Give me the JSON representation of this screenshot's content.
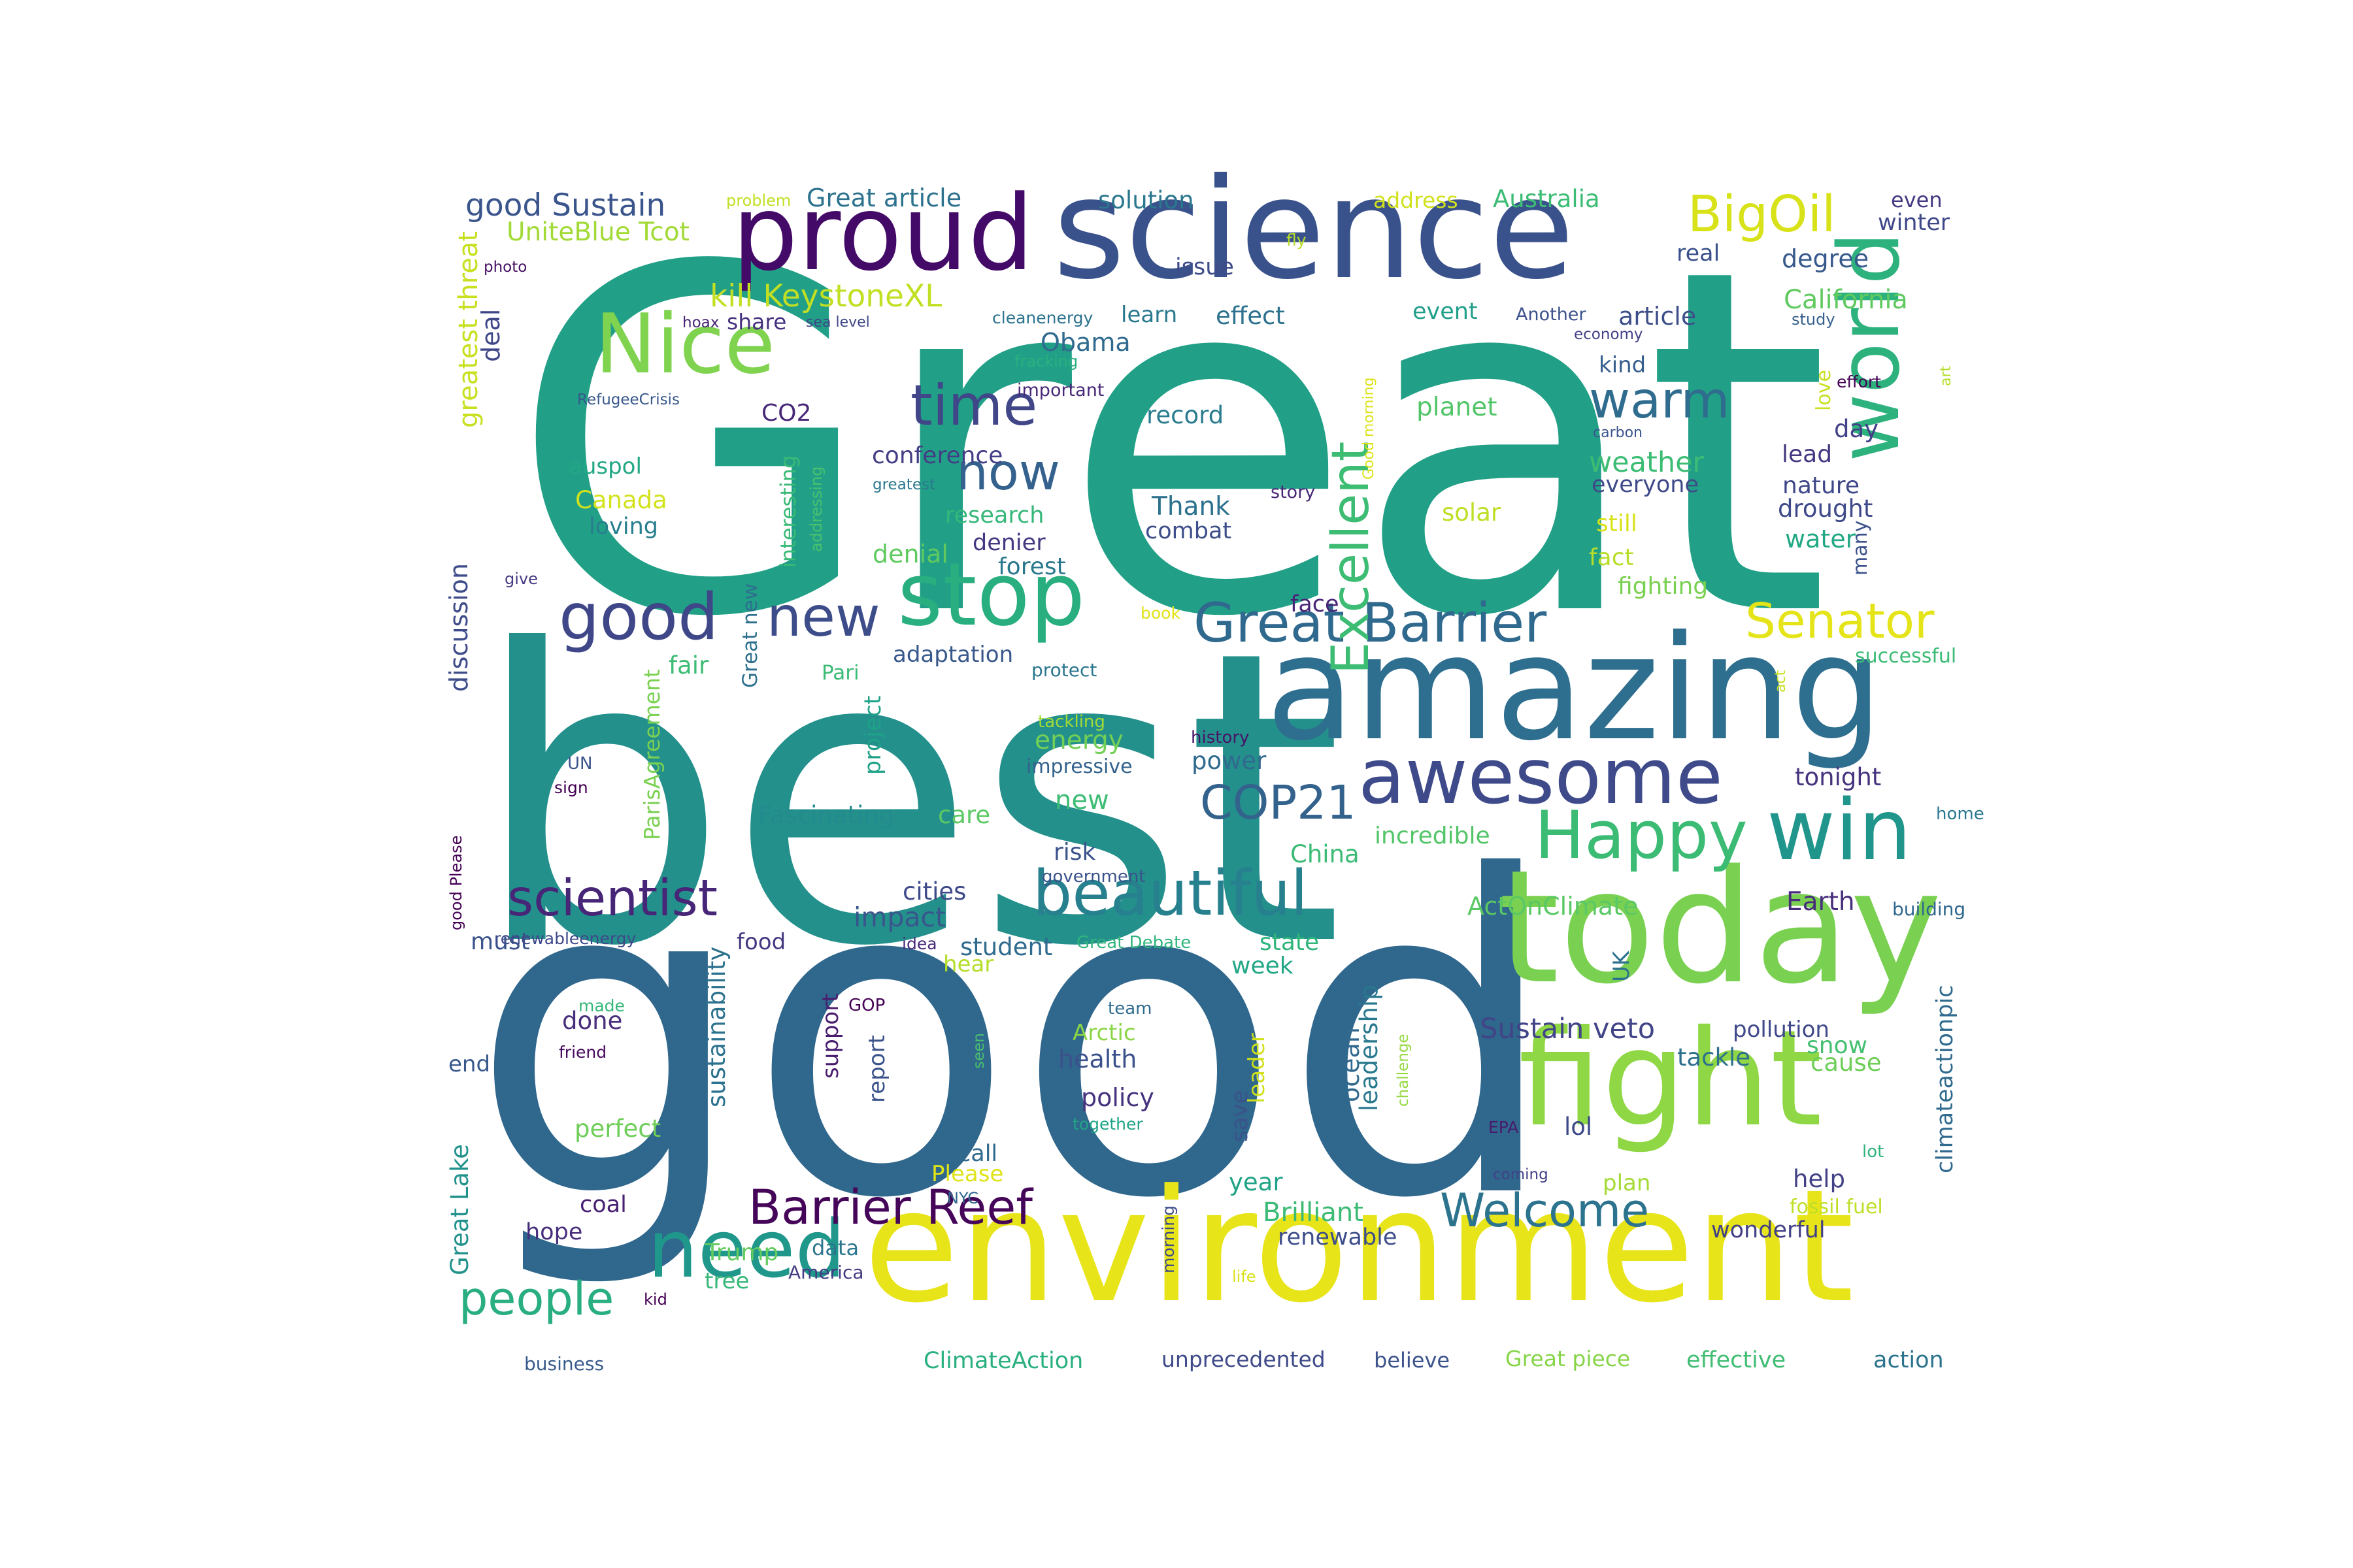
{
  "words": [
    {
      "text": "Great",
      "color": "#21a087"
    },
    {
      "text": "best",
      "color": "#23908c"
    },
    {
      "text": "good",
      "color": "#30678d"
    },
    {
      "text": "science",
      "color": "#3a528b"
    },
    {
      "text": "amazing",
      "color": "#2e6e8e"
    },
    {
      "text": "environment",
      "color": "#e8e41a"
    },
    {
      "text": "today",
      "color": "#7ad151"
    },
    {
      "text": "fight",
      "color": "#8fd744"
    },
    {
      "text": "proud",
      "color": "#440a68"
    },
    {
      "text": "awesome",
      "color": "#3e4a89"
    },
    {
      "text": "stop",
      "color": "#29af7f"
    },
    {
      "text": "Nice",
      "color": "#7fd34e"
    },
    {
      "text": "world",
      "color": "#2db27d"
    },
    {
      "text": "win",
      "color": "#1f958b"
    },
    {
      "text": "need",
      "color": "#1f978b"
    },
    {
      "text": "beautiful",
      "color": "#27808e"
    },
    {
      "text": "Happy",
      "color": "#3cbb75"
    },
    {
      "text": "time",
      "color": "#404688"
    },
    {
      "text": "good",
      "color": "#3f4788"
    },
    {
      "text": "new",
      "color": "#3d4d8a"
    },
    {
      "text": "now",
      "color": "#34618d"
    },
    {
      "text": "warm",
      "color": "#2f6c8e"
    },
    {
      "text": "Great Barrier",
      "color": "#30698e"
    },
    {
      "text": "Senator",
      "color": "#e5e419"
    },
    {
      "text": "BigOil",
      "color": "#d8e219"
    },
    {
      "text": "Excellent",
      "color": "#3dbc74"
    },
    {
      "text": "COP21",
      "color": "#33628d"
    },
    {
      "text": "scientist",
      "color": "#482677"
    },
    {
      "text": "Barrier Reef",
      "color": "#450559"
    },
    {
      "text": "Welcome",
      "color": "#2c738e"
    },
    {
      "text": "people",
      "color": "#28ae80"
    },
    {
      "text": "good Sustain",
      "color": "#3a548c"
    },
    {
      "text": "Great article",
      "color": "#2c728e"
    },
    {
      "text": "solution",
      "color": "#2a778e"
    },
    {
      "text": "address",
      "color": "#d0e11c"
    },
    {
      "text": "Australia",
      "color": "#3cbc74"
    },
    {
      "text": "even",
      "color": "#453882"
    },
    {
      "text": "winter",
      "color": "#3f4889"
    },
    {
      "text": "UniteBlue Tcot",
      "color": "#a2da37"
    },
    {
      "text": "kill KeystoneXL",
      "color": "#c2df23"
    },
    {
      "text": "issue",
      "color": "#3e4c8a"
    },
    {
      "text": "real",
      "color": "#3b518b"
    },
    {
      "text": "degree",
      "color": "#37598c"
    },
    {
      "text": "California",
      "color": "#60ca60"
    },
    {
      "text": "effect",
      "color": "#2c718e"
    },
    {
      "text": "learn",
      "color": "#29798e"
    },
    {
      "text": "event",
      "color": "#1f9e89"
    },
    {
      "text": "article",
      "color": "#3d4e8a"
    },
    {
      "text": "Obama",
      "color": "#306a8e"
    },
    {
      "text": "deal",
      "color": "#3f4788"
    },
    {
      "text": "share",
      "color": "#46327e"
    },
    {
      "text": "greatest threat",
      "color": "#c8e020"
    },
    {
      "text": "photo",
      "color": "#471164"
    },
    {
      "text": "kind",
      "color": "#355e8d"
    },
    {
      "text": "record",
      "color": "#287c8e"
    },
    {
      "text": "planet",
      "color": "#52c569"
    },
    {
      "text": "CO2",
      "color": "#482878"
    },
    {
      "text": "conference",
      "color": "#433e85"
    },
    {
      "text": "day",
      "color": "#424086"
    },
    {
      "text": "lead",
      "color": "#453781"
    },
    {
      "text": "weather",
      "color": "#3dbc74"
    },
    {
      "text": "everyone",
      "color": "#3e4a89"
    },
    {
      "text": "nature",
      "color": "#3f4788"
    },
    {
      "text": "drought",
      "color": "#3e4989"
    },
    {
      "text": "auspol",
      "color": "#22a785"
    },
    {
      "text": "Canada",
      "color": "#d2e21b"
    },
    {
      "text": "loving",
      "color": "#277f8e"
    },
    {
      "text": "research",
      "color": "#35b779"
    },
    {
      "text": "Thank",
      "color": "#2c728e"
    },
    {
      "text": "combat",
      "color": "#3d4e8a"
    },
    {
      "text": "solar",
      "color": "#bddf26"
    },
    {
      "text": "still",
      "color": "#d8e219"
    },
    {
      "text": "water",
      "color": "#22a884"
    },
    {
      "text": "fact",
      "color": "#b8de29"
    },
    {
      "text": "denier",
      "color": "#453781"
    },
    {
      "text": "denial",
      "color": "#60ca60"
    },
    {
      "text": "forest",
      "color": "#2a788e"
    },
    {
      "text": "fighting",
      "color": "#7ad151"
    },
    {
      "text": "face",
      "color": "#482576"
    },
    {
      "text": "adaptation",
      "color": "#38588c"
    },
    {
      "text": "protect",
      "color": "#2a778e"
    },
    {
      "text": "successful",
      "color": "#3bbb75"
    },
    {
      "text": "fair",
      "color": "#3cbc74"
    },
    {
      "text": "Pari",
      "color": "#3bbb75"
    },
    {
      "text": "energy",
      "color": "#73d056"
    },
    {
      "text": "new",
      "color": "#3dbc74"
    },
    {
      "text": "power",
      "color": "#306a8e"
    },
    {
      "text": "tonight",
      "color": "#46337e"
    },
    {
      "text": "Fascinating",
      "color": "#238a8d"
    },
    {
      "text": "care",
      "color": "#5cc863"
    },
    {
      "text": "incredible",
      "color": "#54c568"
    },
    {
      "text": "impressive",
      "color": "#33628d"
    },
    {
      "text": "China",
      "color": "#3cbb75"
    },
    {
      "text": "risk",
      "color": "#3b528b"
    },
    {
      "text": "cities",
      "color": "#3e4a89"
    },
    {
      "text": "impact",
      "color": "#39568c"
    },
    {
      "text": "student",
      "color": "#2f6b8e"
    },
    {
      "text": "ActOnClimate",
      "color": "#5ac864"
    },
    {
      "text": "Earth",
      "color": "#472d7b"
    },
    {
      "text": "state",
      "color": "#2fb47c"
    },
    {
      "text": "week",
      "color": "#22a785"
    },
    {
      "text": "food",
      "color": "#453882"
    },
    {
      "text": "must",
      "color": "#3a538b"
    },
    {
      "text": "hear",
      "color": "#b5de2b"
    },
    {
      "text": "Sustain veto",
      "color": "#414487"
    },
    {
      "text": "pollution",
      "color": "#3f4889"
    },
    {
      "text": "snow",
      "color": "#44bf70"
    },
    {
      "text": "tackle",
      "color": "#2d708e"
    },
    {
      "text": "cause",
      "color": "#6ece58"
    },
    {
      "text": "done",
      "color": "#472d7b"
    },
    {
      "text": "support",
      "color": "#481c6e"
    },
    {
      "text": "report",
      "color": "#3a538b"
    },
    {
      "text": "Arctic",
      "color": "#8bd646"
    },
    {
      "text": "health",
      "color": "#3b518b"
    },
    {
      "text": "policy",
      "color": "#46337e"
    },
    {
      "text": "leader",
      "color": "#d0e11c"
    },
    {
      "text": "ocean",
      "color": "#31688e"
    },
    {
      "text": "leadership",
      "color": "#2a788e"
    },
    {
      "text": "save",
      "color": "#3b528b"
    },
    {
      "text": "lol",
      "color": "#3e4989"
    },
    {
      "text": "end",
      "color": "#38598c"
    },
    {
      "text": "perfect",
      "color": "#6ece58"
    },
    {
      "text": "call",
      "color": "#306a8e"
    },
    {
      "text": "Please",
      "color": "#dfe318"
    },
    {
      "text": "year",
      "color": "#20a386"
    },
    {
      "text": "Brilliant",
      "color": "#3bbb75"
    },
    {
      "text": "renewable",
      "color": "#3d4e8a"
    },
    {
      "text": "help",
      "color": "#424186"
    },
    {
      "text": "plan",
      "color": "#a5db36"
    },
    {
      "text": "coal",
      "color": "#482173"
    },
    {
      "text": "hope",
      "color": "#472e7c"
    },
    {
      "text": "Trump",
      "color": "#63cb5f"
    },
    {
      "text": "data",
      "color": "#2b758e"
    },
    {
      "text": "tree",
      "color": "#37b878"
    },
    {
      "text": "America",
      "color": "#433d84"
    },
    {
      "text": "wonderful",
      "color": "#424086"
    },
    {
      "text": "ClimateAction",
      "color": "#2ab07f"
    },
    {
      "text": "unprecedented",
      "color": "#3e4a89"
    },
    {
      "text": "believe",
      "color": "#3b528b"
    },
    {
      "text": "Great piece",
      "color": "#86d549"
    },
    {
      "text": "effective",
      "color": "#40bd72"
    },
    {
      "text": "action",
      "color": "#2c738e"
    },
    {
      "text": "business",
      "color": "#375a8c"
    },
    {
      "text": "kid",
      "color": "#440154"
    },
    {
      "text": "problem",
      "color": "#c2df23"
    },
    {
      "text": "fly",
      "color": "#b8de29"
    },
    {
      "text": "hoax",
      "color": "#482475"
    },
    {
      "text": "sea level",
      "color": "#3f4788"
    },
    {
      "text": "cleanenergy",
      "color": "#2c738e"
    },
    {
      "text": "fracking",
      "color": "#2ab07f"
    },
    {
      "text": "Good morning",
      "color": "#dde318"
    },
    {
      "text": "Another",
      "color": "#3b528b"
    },
    {
      "text": "economy",
      "color": "#424186"
    },
    {
      "text": "study",
      "color": "#355f8d"
    },
    {
      "text": "effort",
      "color": "#440154"
    },
    {
      "text": "art",
      "color": "#b5de2b"
    },
    {
      "text": "love",
      "color": "#c8e020"
    },
    {
      "text": "RefugeeCrisis",
      "color": "#38588c"
    },
    {
      "text": "important",
      "color": "#482878"
    },
    {
      "text": "carbon",
      "color": "#3a548c"
    },
    {
      "text": "interesting",
      "color": "#3aba76"
    },
    {
      "text": "addressing",
      "color": "#4ac16d"
    },
    {
      "text": "greatest",
      "color": "#2a788e"
    },
    {
      "text": "story",
      "color": "#482878"
    },
    {
      "text": "many",
      "color": "#3b528b"
    },
    {
      "text": "give",
      "color": "#453882"
    },
    {
      "text": "book",
      "color": "#e0e318"
    },
    {
      "text": "discussion",
      "color": "#3e4c8a"
    },
    {
      "text": "Great new",
      "color": "#2d708e"
    },
    {
      "text": "ParisAgreement",
      "color": "#7ad151"
    },
    {
      "text": "project",
      "color": "#1fa188"
    },
    {
      "text": "act",
      "color": "#c8e020"
    },
    {
      "text": "tackling",
      "color": "#a5db36"
    },
    {
      "text": "history",
      "color": "#471365"
    },
    {
      "text": "UN",
      "color": "#3b528b"
    },
    {
      "text": "sign",
      "color": "#440154"
    },
    {
      "text": "good Please",
      "color": "#440154"
    },
    {
      "text": "renewableenergy",
      "color": "#3e4989"
    },
    {
      "text": "idea",
      "color": "#472a7a"
    },
    {
      "text": "government",
      "color": "#3b528b"
    },
    {
      "text": "Great Debate",
      "color": "#2fb47c"
    },
    {
      "text": "building",
      "color": "#31688e"
    },
    {
      "text": "home",
      "color": "#2a788e"
    },
    {
      "text": "climateactionpic",
      "color": "#306a8e"
    },
    {
      "text": "UK",
      "color": "#2c718e"
    },
    {
      "text": "GOP",
      "color": "#440154"
    },
    {
      "text": "team",
      "color": "#2f6b8e"
    },
    {
      "text": "made",
      "color": "#35b779"
    },
    {
      "text": "friend",
      "color": "#46085c"
    },
    {
      "text": "seen",
      "color": "#4ac16d"
    },
    {
      "text": "together",
      "color": "#20a486"
    },
    {
      "text": "challenge",
      "color": "#95d840"
    },
    {
      "text": "EPA",
      "color": "#481b6d"
    },
    {
      "text": "lot",
      "color": "#2fb47c"
    },
    {
      "text": "coming",
      "color": "#424086"
    },
    {
      "text": "fossil fuel",
      "color": "#bddf26"
    },
    {
      "text": "Great Lake",
      "color": "#21918c"
    },
    {
      "text": "sustainability",
      "color": "#2c728e"
    },
    {
      "text": "NYC",
      "color": "#31688e"
    },
    {
      "text": "morning",
      "color": "#3e4a89"
    },
    {
      "text": "life",
      "color": "#d8e219"
    }
  ]
}
